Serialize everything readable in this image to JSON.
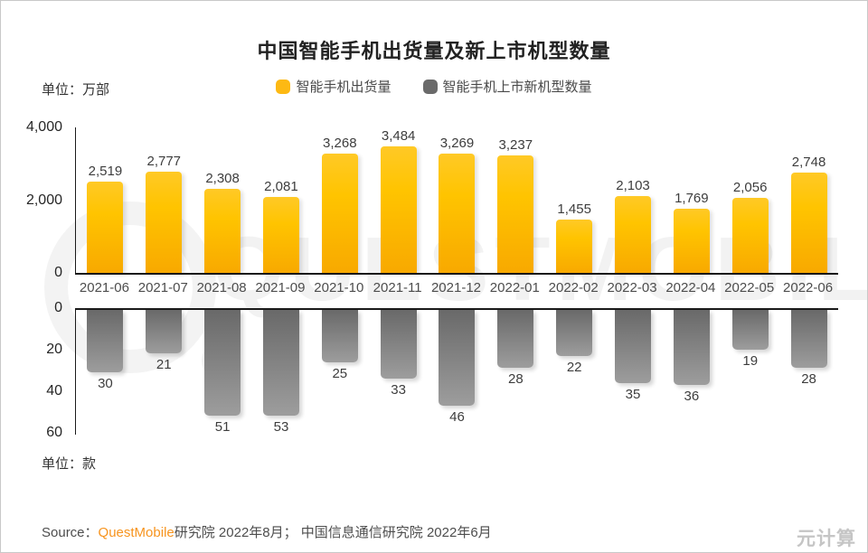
{
  "title": "中国智能手机出货量及新上市机型数量",
  "unit_top": "单位：万部",
  "unit_bottom": "单位：款",
  "legend": [
    {
      "label": "智能手机出货量",
      "color": "#fdb913"
    },
    {
      "label": "智能手机上市新机型数量",
      "color": "#6a6a6a"
    }
  ],
  "source": {
    "prefix": "Source：",
    "brand": "QuestMobile",
    "rest": "研究院 2022年8月； 中国信息通信研究院 2022年6月"
  },
  "watermark": {
    "background_text": "QUESTMOBILE",
    "corner_text": "元计算"
  },
  "colors": {
    "bar_yellow_top": "#ffc926",
    "bar_yellow_bottom": "#f8a900",
    "bar_gray_top": "#696969",
    "bar_gray_bottom": "#9d9d9d",
    "brand_orange": "#f7941e",
    "axis_line": "#1a1a1a",
    "watermark_gray": "#f2f2f2"
  },
  "chart_data": {
    "type": "bar",
    "title": "中国智能手机出货量及新上市机型数量",
    "categories": [
      "2021-06",
      "2021-07",
      "2021-08",
      "2021-09",
      "2021-10",
      "2021-11",
      "2021-12",
      "2022-01",
      "2022-02",
      "2022-03",
      "2022-04",
      "2022-05",
      "2022-06"
    ],
    "legend_position": "top-center",
    "grid": false,
    "series": [
      {
        "name": "智能手机出货量",
        "unit": "万部",
        "orientation": "up",
        "values": [
          2519,
          2777,
          2308,
          2081,
          3268,
          3484,
          3269,
          3237,
          1455,
          2103,
          1769,
          2056,
          2748
        ],
        "labels": [
          "2,519",
          "2,777",
          "2,308",
          "2,081",
          "3,268",
          "3,484",
          "3,269",
          "3,237",
          "1,455",
          "2,103",
          "1,769",
          "2,056",
          "2,748"
        ],
        "ylim": [
          0,
          4000
        ],
        "yticks": [
          "4,000",
          "2,000",
          "0"
        ]
      },
      {
        "name": "智能手机上市新机型数量",
        "unit": "款",
        "orientation": "down",
        "values": [
          30,
          21,
          51,
          53,
          25,
          33,
          46,
          28,
          22,
          35,
          36,
          19,
          28
        ],
        "labels": [
          "30",
          "21",
          "51",
          "53",
          "25",
          "33",
          "46",
          "28",
          "22",
          "35",
          "36",
          "19",
          "28"
        ],
        "ylim": [
          0,
          60
        ],
        "yticks": [
          "0",
          "20",
          "40",
          "60"
        ]
      }
    ]
  }
}
